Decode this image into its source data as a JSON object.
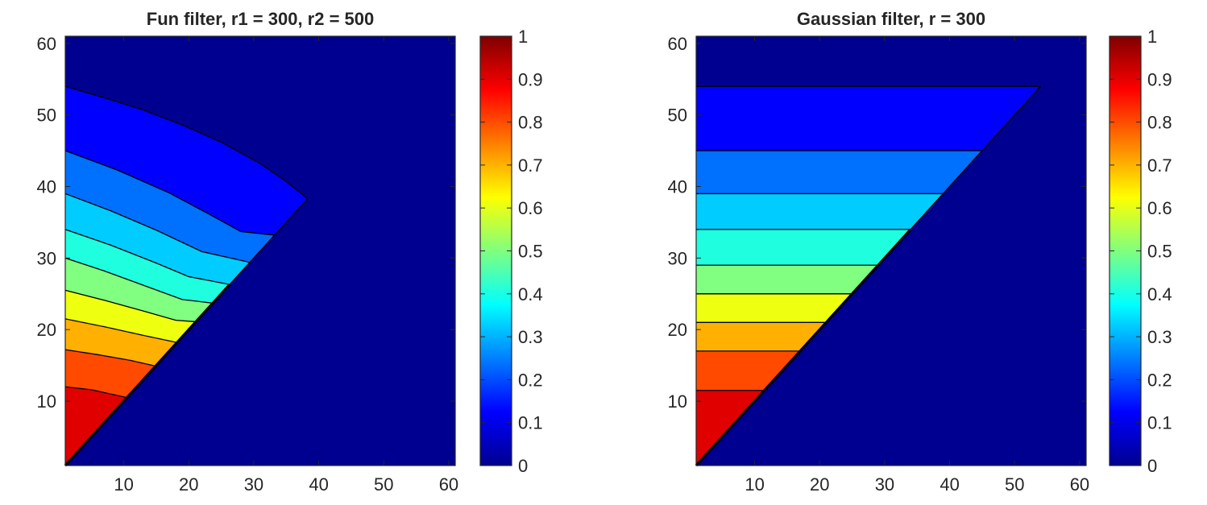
{
  "chart_data": [
    {
      "type": "contourf",
      "title": "Fun filter, r1 = 300, r2 = 500",
      "xlabel": "",
      "ylabel": "",
      "xlim": [
        1,
        61
      ],
      "ylim": [
        1,
        61
      ],
      "xticks": [
        10,
        20,
        30,
        40,
        50,
        60
      ],
      "yticks": [
        10,
        20,
        30,
        40,
        50,
        60
      ],
      "region": "lower-left triangle below the diagonal y = x",
      "contour_boundaries": [
        {
          "level": 0.1,
          "points": [
            [
              1,
              54
            ],
            [
              7,
              52.4
            ],
            [
              13,
              50.7
            ],
            [
              19,
              48.6
            ],
            [
              25,
              46.2
            ],
            [
              31,
              43.2
            ],
            [
              35,
              40.7
            ],
            [
              38.3,
              38.3
            ]
          ]
        },
        {
          "level": 0.2,
          "points": [
            [
              1,
              45
            ],
            [
              9,
              42.3
            ],
            [
              17,
              39.1
            ],
            [
              23,
              36.2
            ],
            [
              28,
              33.7
            ],
            [
              33.2,
              33.2
            ]
          ]
        },
        {
          "level": 0.3,
          "points": [
            [
              1,
              39
            ],
            [
              8,
              36.6
            ],
            [
              15,
              33.9
            ],
            [
              22,
              30.9
            ],
            [
              29.4,
              29.4
            ]
          ]
        },
        {
          "level": 0.4,
          "points": [
            [
              1,
              34
            ],
            [
              8,
              31.8
            ],
            [
              15,
              29.3
            ],
            [
              20,
              27.4
            ],
            [
              26.3,
              26.3
            ]
          ]
        },
        {
          "level": 0.5,
          "points": [
            [
              1,
              30
            ],
            [
              7,
              28.2
            ],
            [
              13,
              26.2
            ],
            [
              19,
              24.2
            ],
            [
              23.7,
              23.7
            ]
          ]
        },
        {
          "level": 0.6,
          "points": [
            [
              1,
              25.5
            ],
            [
              7,
              24.1
            ],
            [
              13,
              22.6
            ],
            [
              18,
              21.3
            ],
            [
              21.1,
              21.1
            ]
          ]
        },
        {
          "level": 0.7,
          "points": [
            [
              1,
              21.5
            ],
            [
              7,
              20.4
            ],
            [
              13,
              19.2
            ],
            [
              18.2,
              18.2
            ]
          ]
        },
        {
          "level": 0.8,
          "points": [
            [
              1,
              17.2
            ],
            [
              6,
              16.5
            ],
            [
              11,
              15.7
            ],
            [
              14.9,
              14.9
            ]
          ]
        },
        {
          "level": 0.9,
          "points": [
            [
              1,
              12
            ],
            [
              5,
              11.6
            ],
            [
              10.5,
              10.5
            ]
          ]
        }
      ],
      "colorbar": {
        "min": 0,
        "max": 1,
        "ticks": [
          "0",
          "0.1",
          "0.2",
          "0.3",
          "0.4",
          "0.5",
          "0.6",
          "0.7",
          "0.8",
          "0.9",
          "1"
        ]
      }
    },
    {
      "type": "contourf",
      "title": "Gaussian filter, r = 300",
      "xlabel": "",
      "ylabel": "",
      "xlim": [
        1,
        61
      ],
      "ylim": [
        1,
        61
      ],
      "xticks": [
        10,
        20,
        30,
        40,
        50,
        60
      ],
      "yticks": [
        10,
        20,
        30,
        40,
        50,
        60
      ],
      "region": "lower-left triangle below the diagonal y = x",
      "contour_boundaries": [
        {
          "level": 0.1,
          "points": [
            [
              1,
              54
            ],
            [
              54,
              54
            ]
          ]
        },
        {
          "level": 0.2,
          "points": [
            [
              1,
              45
            ],
            [
              45,
              45
            ]
          ]
        },
        {
          "level": 0.3,
          "points": [
            [
              1,
              39
            ],
            [
              39,
              39
            ]
          ]
        },
        {
          "level": 0.4,
          "points": [
            [
              1,
              34
            ],
            [
              34,
              34
            ]
          ]
        },
        {
          "level": 0.5,
          "points": [
            [
              1,
              29
            ],
            [
              29,
              29
            ]
          ]
        },
        {
          "level": 0.6,
          "points": [
            [
              1,
              25
            ],
            [
              25,
              25
            ]
          ]
        },
        {
          "level": 0.7,
          "points": [
            [
              1,
              21
            ],
            [
              21,
              21
            ]
          ]
        },
        {
          "level": 0.8,
          "points": [
            [
              1,
              17
            ],
            [
              17,
              17
            ]
          ]
        },
        {
          "level": 0.9,
          "points": [
            [
              1,
              11.5
            ],
            [
              11.5,
              11.5
            ]
          ]
        }
      ],
      "colorbar": {
        "min": 0,
        "max": 1,
        "ticks": [
          "0",
          "0.1",
          "0.2",
          "0.3",
          "0.4",
          "0.5",
          "0.6",
          "0.7",
          "0.8",
          "0.9",
          "1"
        ]
      }
    }
  ],
  "colors": {
    "band_0_0": "#000090",
    "band_0_1": "#0000FF",
    "band_1_2": "#0070FF",
    "band_2_3": "#00CCFF",
    "band_3_4": "#1FFFE0",
    "band_4_5": "#80FF80",
    "band_5_6": "#EFFF10",
    "band_6_7": "#FFB000",
    "band_7_8": "#FF4A00",
    "band_8_9": "#E00000",
    "contour_line": "#000000"
  }
}
